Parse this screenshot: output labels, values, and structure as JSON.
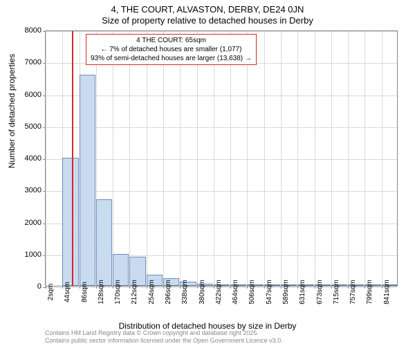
{
  "title_main": "4, THE COURT, ALVASTON, DERBY, DE24 0JN",
  "title_sub": "Size of property relative to detached houses in Derby",
  "chart": {
    "type": "histogram",
    "y_label": "Number of detached properties",
    "x_label": "Distribution of detached houses by size in Derby",
    "ylim": [
      0,
      8000
    ],
    "ytick_step": 1000,
    "yticks": [
      0,
      1000,
      2000,
      3000,
      4000,
      5000,
      6000,
      7000,
      8000
    ],
    "x_categories": [
      "2sqm",
      "44sqm",
      "86sqm",
      "128sqm",
      "170sqm",
      "212sqm",
      "254sqm",
      "296sqm",
      "338sqm",
      "380sqm",
      "422sqm",
      "464sqm",
      "506sqm",
      "547sqm",
      "589sqm",
      "631sqm",
      "673sqm",
      "715sqm",
      "757sqm",
      "799sqm",
      "841sqm"
    ],
    "bars": [
      {
        "x_index": 1,
        "value": 4000
      },
      {
        "x_index": 2,
        "value": 6600
      },
      {
        "x_index": 3,
        "value": 2700
      },
      {
        "x_index": 4,
        "value": 1000
      },
      {
        "x_index": 5,
        "value": 900
      },
      {
        "x_index": 6,
        "value": 350
      },
      {
        "x_index": 7,
        "value": 240
      },
      {
        "x_index": 8,
        "value": 130
      },
      {
        "x_index": 9,
        "value": 70
      },
      {
        "x_index": 10,
        "value": 50
      },
      {
        "x_index": 11,
        "value": 35
      },
      {
        "x_index": 12,
        "value": 25
      },
      {
        "x_index": 13,
        "value": 20
      },
      {
        "x_index": 14,
        "value": 15
      },
      {
        "x_index": 15,
        "value": 10
      },
      {
        "x_index": 16,
        "value": 10
      },
      {
        "x_index": 17,
        "value": 8
      },
      {
        "x_index": 18,
        "value": 6
      },
      {
        "x_index": 19,
        "value": 5
      },
      {
        "x_index": 20,
        "value": 4
      }
    ],
    "bar_color": "#c9dbee",
    "bar_border": "#6b8db8",
    "grid_color": "#d8d8d8",
    "background_color": "#ffffff",
    "marker": {
      "x_value": 65,
      "x_min": 2,
      "x_max": 841,
      "color": "#d62728"
    },
    "annotation": {
      "line1": "4 THE COURT: 65sqm",
      "line2": "← 7% of detached houses are smaller (1,077)",
      "line3": "93% of semi-detached houses are larger (13,638) →",
      "border_color": "#d62728"
    },
    "title_fontsize": 13,
    "label_fontsize": 12,
    "tick_fontsize": 11
  },
  "attribution": {
    "line1": "Contains HM Land Registry data © Crown copyright and database right 2025.",
    "line2": "Contains public sector information licensed under the Open Government Licence v3.0."
  }
}
